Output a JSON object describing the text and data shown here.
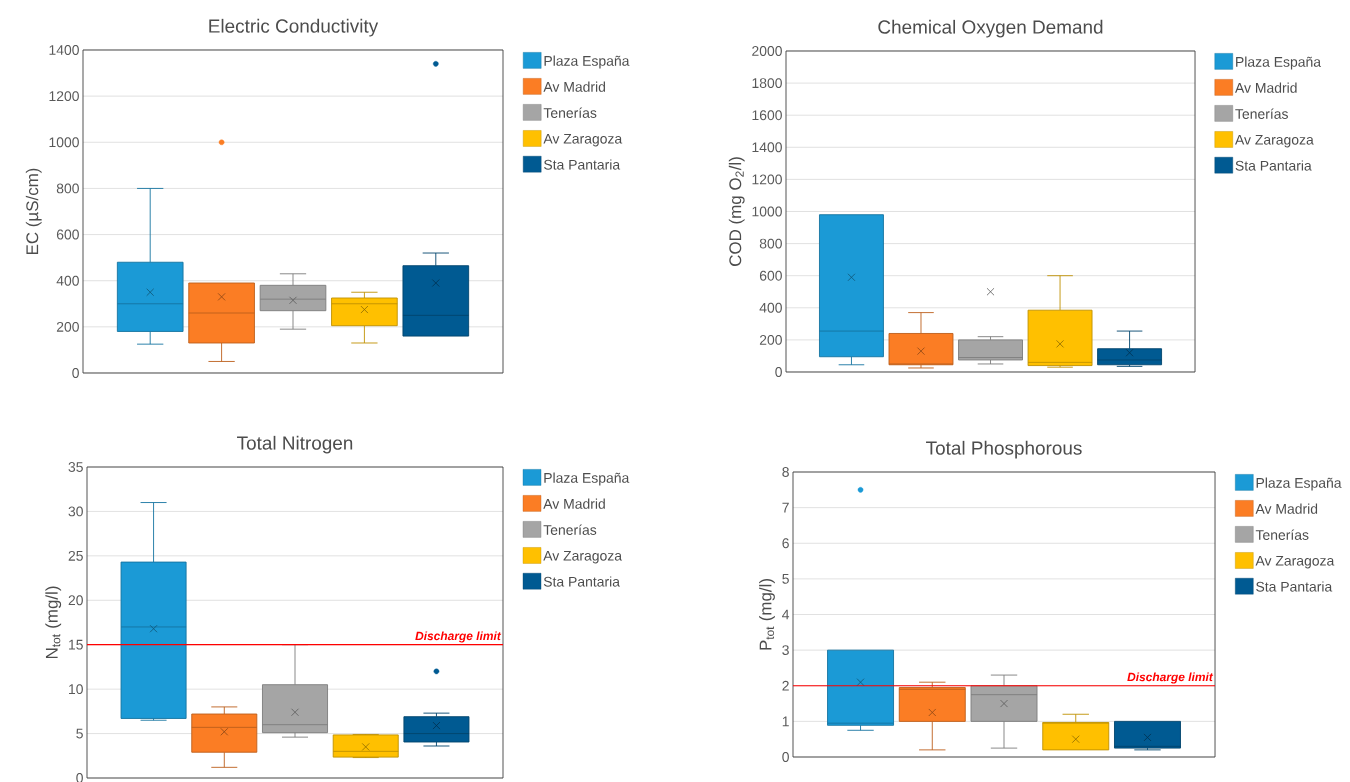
{
  "chart_data": [
    {
      "type": "box",
      "title": "Electric Conductivity",
      "ylabel": "EC (µS/cm)",
      "categories": [
        null
      ],
      "ylim": [
        0,
        1400
      ],
      "yticks": [
        0,
        200,
        400,
        600,
        800,
        1000,
        1200,
        1400
      ],
      "grid": "y",
      "legend": "right",
      "tick_labels": "y",
      "series": [
        {
          "name": "Plaza España",
          "color": "#1b9ad6",
          "boxes": [
            {
              "low": 125,
              "q1": 180,
              "median": 300,
              "q3": 480,
              "high": 800,
              "mean": 350
            }
          ]
        },
        {
          "name": "Av Madrid",
          "color": "#fb7d24",
          "boxes": [
            {
              "low": 50,
              "q1": 130,
              "median": 260,
              "q3": 390,
              "high": 390,
              "mean": 330,
              "outliers": [
                1000
              ]
            }
          ]
        },
        {
          "name": "Tenerías",
          "color": "#a5a5a5",
          "boxes": [
            {
              "low": 190,
              "q1": 270,
              "median": 320,
              "q3": 380,
              "high": 430,
              "mean": 315
            }
          ]
        },
        {
          "name": "Av Zaragoza",
          "color": "#ffc000",
          "boxes": [
            {
              "low": 130,
              "q1": 205,
              "median": 300,
              "q3": 325,
              "high": 350,
              "mean": 275
            }
          ]
        },
        {
          "name": "Sta Pantaria",
          "color": "#005a92",
          "boxes": [
            {
              "low": 160,
              "q1": 160,
              "median": 250,
              "q3": 465,
              "high": 520,
              "mean": 390,
              "outliers": [
                1340
              ]
            }
          ]
        }
      ]
    },
    {
      "type": "box",
      "title": "Chemical Oxygen Demand",
      "ylabel": "COD (mg O$_{2}$/l)",
      "categories": [
        null
      ],
      "ylim": [
        0,
        2000
      ],
      "yticks": [
        0,
        200,
        400,
        600,
        800,
        1000,
        1200,
        1400,
        1600,
        1800,
        2000
      ],
      "grid": "y",
      "legend": "right",
      "tick_labels": "y",
      "series": [
        {
          "name": "Plaza España",
          "color": "#1b9ad6",
          "boxes": [
            {
              "low": 45,
              "q1": 95,
              "median": 255,
              "q3": 980,
              "high": 980,
              "mean": 590
            }
          ]
        },
        {
          "name": "Av Madrid",
          "color": "#fb7d24",
          "boxes": [
            {
              "low": 25,
              "q1": 45,
              "median": 50,
              "q3": 240,
              "high": 370,
              "mean": 130
            }
          ]
        },
        {
          "name": "Tenerías",
          "color": "#a5a5a5",
          "boxes": [
            {
              "low": 50,
              "q1": 75,
              "median": 90,
              "q3": 200,
              "high": 220,
              "mean": 500
            }
          ]
        },
        {
          "name": "Av Zaragoza",
          "color": "#ffc000",
          "boxes": [
            {
              "low": 30,
              "q1": 40,
              "median": 60,
              "q3": 385,
              "high": 600,
              "mean": 175
            }
          ]
        },
        {
          "name": "Sta Pantaria",
          "color": "#005a92",
          "boxes": [
            {
              "low": 35,
              "q1": 45,
              "median": 75,
              "q3": 145,
              "high": 255,
              "mean": 120
            }
          ]
        }
      ]
    },
    {
      "type": "box",
      "title": "Total Nitrogen",
      "ylabel": "N$_{tot}$ (mg/l)",
      "categories": [
        null
      ],
      "ylim": [
        0,
        35
      ],
      "yticks": [
        0,
        5,
        10,
        15,
        20,
        25,
        30,
        35
      ],
      "grid": "y",
      "legend": "right",
      "tick_labels": "y",
      "ref_lines": [
        {
          "axis": "y",
          "value": 15,
          "label": "Discharge limit",
          "color": "#ff0000"
        }
      ],
      "series": [
        {
          "name": "Plaza España",
          "color": "#1b9ad6",
          "boxes": [
            {
              "low": 6.5,
              "q1": 6.7,
              "median": 17,
              "q3": 24.3,
              "high": 31,
              "mean": 16.8
            }
          ]
        },
        {
          "name": "Av Madrid",
          "color": "#fb7d24",
          "boxes": [
            {
              "low": 1.2,
              "q1": 2.9,
              "median": 5.7,
              "q3": 7.2,
              "high": 8,
              "mean": 5.2
            }
          ]
        },
        {
          "name": "Tenerías",
          "color": "#a5a5a5",
          "boxes": [
            {
              "low": 4.6,
              "q1": 5.1,
              "median": 6,
              "q3": 10.5,
              "high": 15,
              "mean": 7.4
            }
          ]
        },
        {
          "name": "Av Zaragoza",
          "color": "#ffc000",
          "boxes": [
            {
              "low": 2.3,
              "q1": 2.35,
              "median": 3,
              "q3": 4.85,
              "high": 4.9,
              "mean": 3.5
            }
          ]
        },
        {
          "name": "Sta Pantaria",
          "color": "#005a92",
          "boxes": [
            {
              "low": 3.6,
              "q1": 4.05,
              "median": 5,
              "q3": 6.9,
              "high": 7.3,
              "mean": 5.9,
              "outliers": [
                12
              ]
            }
          ]
        }
      ]
    },
    {
      "type": "box",
      "title": "Total Phosphorous",
      "ylabel": "P$_{tot}$ (mg/l)",
      "categories": [
        null
      ],
      "ylim": [
        0,
        8
      ],
      "yticks": [
        0,
        1,
        2,
        3,
        4,
        5,
        6,
        7,
        8
      ],
      "grid": "y",
      "legend": "right",
      "tick_labels": "y",
      "ref_lines": [
        {
          "axis": "y",
          "value": 2,
          "label": "Discharge limit",
          "color": "#ff0000"
        }
      ],
      "series": [
        {
          "name": "Plaza España",
          "color": "#1b9ad6",
          "boxes": [
            {
              "low": 0.75,
              "q1": 0.89,
              "median": 0.95,
              "q3": 3,
              "high": 3,
              "mean": 2.1,
              "outliers": [
                7.5
              ]
            }
          ]
        },
        {
          "name": "Av Madrid",
          "color": "#fb7d24",
          "boxes": [
            {
              "low": 0.2,
              "q1": 1,
              "median": 1.9,
              "q3": 1.95,
              "high": 2.1,
              "mean": 1.25
            }
          ]
        },
        {
          "name": "Tenerías",
          "color": "#a5a5a5",
          "boxes": [
            {
              "low": 0.25,
              "q1": 1,
              "median": 1.75,
              "q3": 2,
              "high": 2.3,
              "mean": 1.5
            }
          ]
        },
        {
          "name": "Av Zaragoza",
          "color": "#ffc000",
          "boxes": [
            {
              "low": 0.2,
              "q1": 0.2,
              "median": 0.95,
              "q3": 0.97,
              "high": 1.2,
              "mean": 0.5
            }
          ]
        },
        {
          "name": "Sta Pantaria",
          "color": "#005a92",
          "boxes": [
            {
              "low": 0.2,
              "q1": 0.25,
              "median": 0.3,
              "q3": 1,
              "high": 1,
              "mean": 0.55
            }
          ]
        }
      ]
    }
  ]
}
